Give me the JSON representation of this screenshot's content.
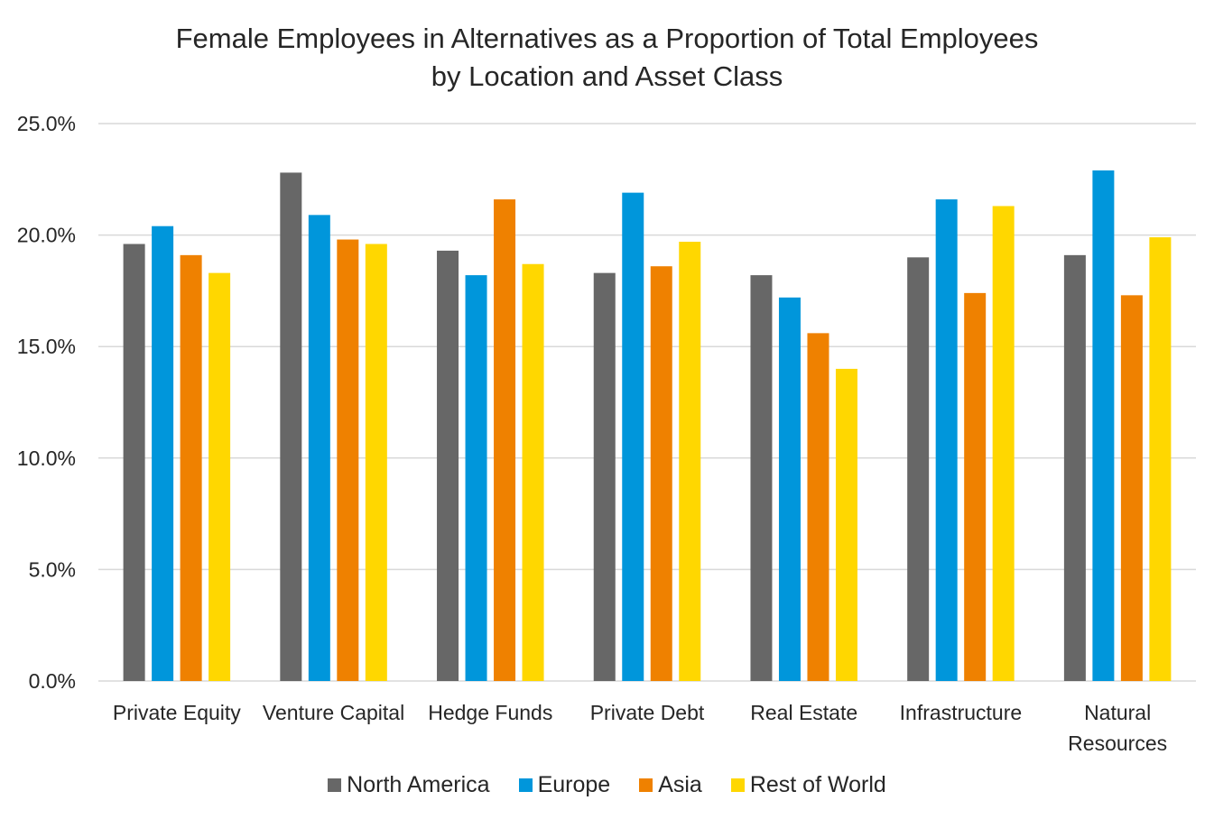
{
  "chart_data": {
    "type": "bar",
    "title": [
      "Female Employees in Alternatives as a Proportion of Total Employees",
      "by Location and Asset Class"
    ],
    "categories": [
      [
        "Private Equity"
      ],
      [
        "Venture Capital"
      ],
      [
        "Hedge Funds"
      ],
      [
        "Private Debt"
      ],
      [
        "Real Estate"
      ],
      [
        "Infrastructure"
      ],
      [
        "Natural",
        "Resources"
      ]
    ],
    "series": [
      {
        "name": "North America",
        "color": "#676767",
        "values": [
          19.6,
          22.8,
          19.3,
          18.3,
          18.2,
          19.0,
          19.1
        ]
      },
      {
        "name": "Europe",
        "color": "#0096DB",
        "values": [
          20.4,
          20.9,
          18.2,
          21.9,
          17.2,
          21.6,
          22.9
        ]
      },
      {
        "name": "Asia",
        "color": "#EF8100",
        "values": [
          19.1,
          19.8,
          21.6,
          18.6,
          15.6,
          17.4,
          17.3
        ]
      },
      {
        "name": "Rest of World",
        "color": "#FFD700",
        "values": [
          18.3,
          19.6,
          18.7,
          19.7,
          14.0,
          21.3,
          19.9
        ]
      }
    ],
    "ylim": [
      0,
      25
    ],
    "yticks": [
      "0.0%",
      "5.0%",
      "10.0%",
      "15.0%",
      "20.0%",
      "25.0%"
    ],
    "grid": true,
    "legend_position": "bottom"
  }
}
